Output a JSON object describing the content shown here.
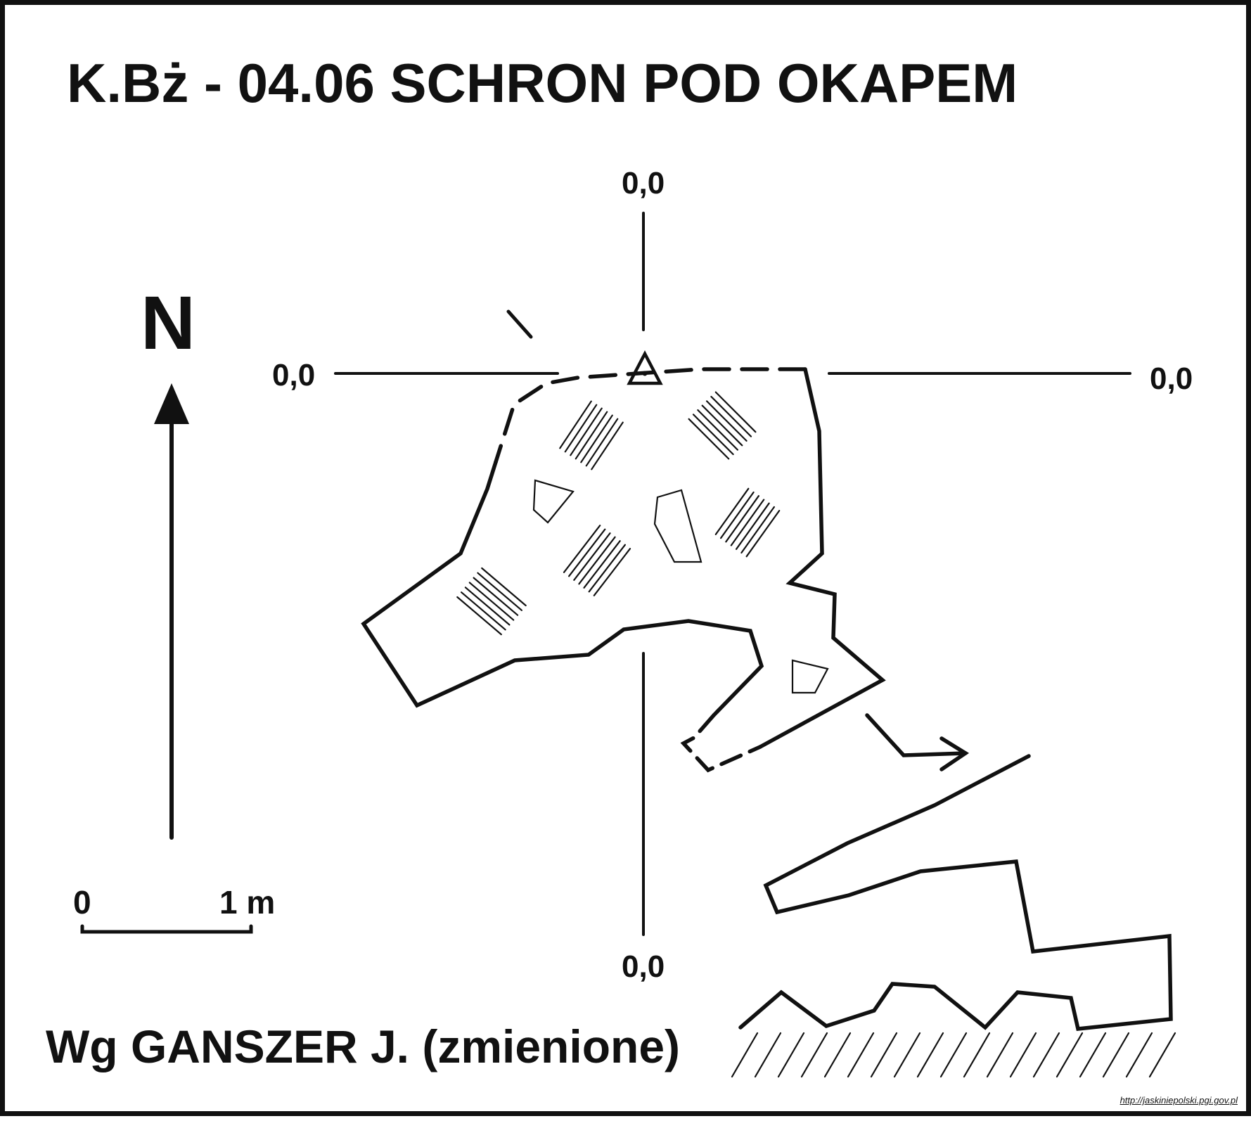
{
  "title": "K.Bż - 04.06  SCHRON POD OKAPEM",
  "north": {
    "letter": "N"
  },
  "coordinates": {
    "top": "0,0",
    "left": "0,0",
    "right": "0,0",
    "bottom": "0,0"
  },
  "scale": {
    "zero": "0",
    "one": "1 m"
  },
  "author": "Wg GANSZER J. (zmienione)",
  "source_url": "http://jaskiniepolski.pgi.gov.pl",
  "colors": {
    "ink": "#111111",
    "paper": "#ffffff"
  },
  "legend_symbols": [
    "survey-station-triangle-icon",
    "north-arrow-icon",
    "scale-bar",
    "rock-block-icon",
    "hatched-floor-deposit",
    "cliff-hatching"
  ]
}
